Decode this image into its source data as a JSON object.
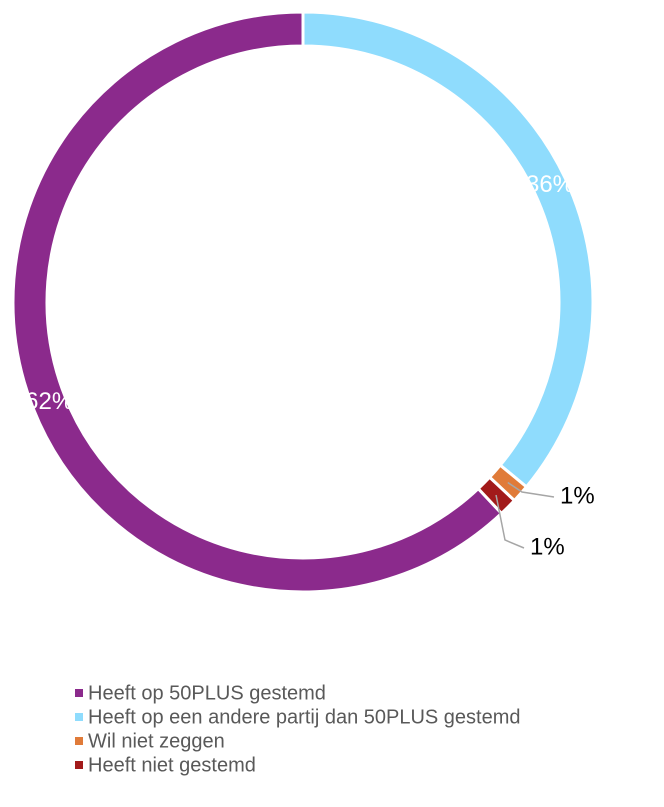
{
  "chart_data": {
    "type": "pie",
    "donut": true,
    "categories": [
      "Heeft op 50PLUS gestemd",
      "Heeft op een andere partij dan 50PLUS gestemd",
      "Wil niet zeggen",
      "Heeft niet gestemd"
    ],
    "values": [
      62,
      36,
      1,
      1
    ],
    "value_labels": [
      "62%",
      "36%",
      "1%",
      "1%"
    ],
    "colors": [
      "#8b2a8c",
      "#8fdcfd",
      "#e07b39",
      "#a21a1a"
    ]
  }
}
